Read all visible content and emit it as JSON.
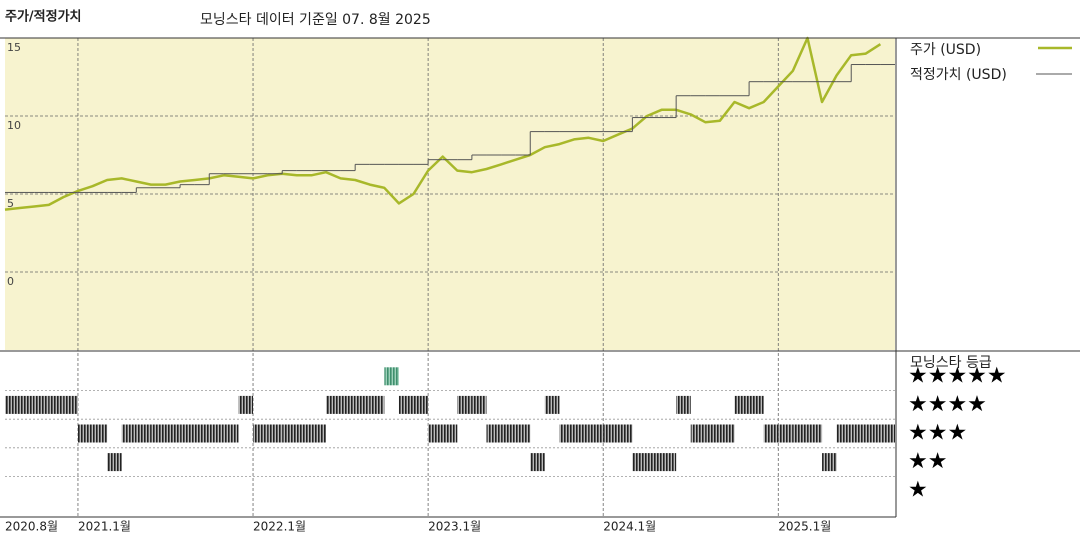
{
  "chart_data": {
    "type": "line",
    "title": "주가/적정가치",
    "subtitle": "모닝스타 데이터 기준일 07. 8월 2025",
    "x": [
      "2020-08",
      "2020-09",
      "2020-10",
      "2020-11",
      "2020-12",
      "2021-01",
      "2021-02",
      "2021-03",
      "2021-04",
      "2021-05",
      "2021-06",
      "2021-07",
      "2021-08",
      "2021-09",
      "2021-10",
      "2021-11",
      "2021-12",
      "2022-01",
      "2022-02",
      "2022-03",
      "2022-04",
      "2022-05",
      "2022-06",
      "2022-07",
      "2022-08",
      "2022-09",
      "2022-10",
      "2022-11",
      "2022-12",
      "2023-01",
      "2023-02",
      "2023-03",
      "2023-04",
      "2023-05",
      "2023-06",
      "2023-07",
      "2023-08",
      "2023-09",
      "2023-10",
      "2023-11",
      "2023-12",
      "2024-01",
      "2024-02",
      "2024-03",
      "2024-04",
      "2024-05",
      "2024-06",
      "2024-07",
      "2024-08",
      "2024-09",
      "2024-10",
      "2024-11",
      "2024-12",
      "2025-01",
      "2025-02",
      "2025-03",
      "2025-04",
      "2025-05",
      "2025-06",
      "2025-07",
      "2025-08"
    ],
    "series": [
      {
        "name": "주가 (USD)",
        "color": "#a8b82a",
        "width": 2.5,
        "values": [
          4.0,
          4.1,
          4.2,
          4.3,
          4.8,
          5.2,
          5.5,
          5.9,
          6.0,
          5.8,
          5.6,
          5.6,
          5.8,
          5.9,
          6.0,
          6.2,
          6.1,
          6.0,
          6.2,
          6.3,
          6.2,
          6.2,
          6.4,
          6.0,
          5.9,
          5.6,
          5.4,
          4.4,
          5.0,
          6.5,
          7.4,
          6.5,
          6.4,
          6.6,
          6.9,
          7.2,
          7.5,
          8.0,
          8.2,
          8.5,
          8.6,
          8.4,
          8.8,
          9.2,
          10.0,
          10.4,
          10.4,
          10.1,
          9.6,
          9.7,
          10.9,
          10.5,
          10.9,
          11.9,
          12.9,
          15.0,
          10.9,
          12.6,
          13.9,
          14.0,
          14.6
        ]
      },
      {
        "name": "적정가치 (USD)",
        "color": "#555555",
        "width": 1,
        "step": true,
        "values": [
          5.1,
          5.1,
          5.1,
          5.1,
          5.1,
          5.1,
          5.1,
          5.1,
          5.1,
          5.4,
          5.4,
          5.4,
          5.6,
          5.6,
          6.3,
          6.3,
          6.3,
          6.3,
          6.3,
          6.5,
          6.5,
          6.5,
          6.5,
          6.5,
          6.9,
          6.9,
          6.9,
          6.9,
          6.9,
          7.2,
          7.2,
          7.2,
          7.5,
          7.5,
          7.5,
          7.5,
          9.0,
          9.0,
          9.0,
          9.0,
          9.0,
          9.0,
          9.0,
          9.9,
          9.9,
          9.9,
          11.3,
          11.3,
          11.3,
          11.3,
          11.3,
          12.2,
          12.2,
          12.2,
          12.2,
          12.2,
          12.2,
          12.2,
          13.3,
          13.3,
          13.3
        ]
      }
    ],
    "xlim": [
      "2020-08",
      "2025-09"
    ],
    "xticks": [
      {
        "value": "2020-08",
        "label": "2020.8월"
      },
      {
        "value": "2021-01",
        "label": "2021.1월"
      },
      {
        "value": "2022-01",
        "label": "2022.1월"
      },
      {
        "value": "2023-01",
        "label": "2023.1월"
      },
      {
        "value": "2024-01",
        "label": "2024.1월"
      },
      {
        "value": "2025-01",
        "label": "2025.1월"
      }
    ],
    "ylim": [
      -5,
      15
    ],
    "yticks": [
      0,
      5,
      10,
      15
    ],
    "grid": true,
    "background": "#f7f3cf",
    "legend": "right",
    "rating": {
      "title": "모닝스타 등급",
      "ylim": [
        0.5,
        5.5
      ],
      "ticks": [
        {
          "value": 5,
          "label": "★★★★★"
        },
        {
          "value": 4,
          "label": "★★★★"
        },
        {
          "value": 3,
          "label": "★★★"
        },
        {
          "value": 2,
          "label": "★★"
        },
        {
          "value": 1,
          "label": "★"
        }
      ],
      "color": "#222222",
      "top_color": "#3f8f6e",
      "values": [
        4,
        4,
        4,
        4,
        4,
        3,
        3,
        2,
        3,
        3,
        3,
        3,
        3,
        3,
        3,
        3,
        4,
        3,
        3,
        3,
        3,
        3,
        4,
        4,
        4,
        4,
        5,
        4,
        4,
        3,
        3,
        4,
        4,
        3,
        3,
        3,
        2,
        4,
        3,
        3,
        3,
        3,
        3,
        2,
        2,
        2,
        4,
        3,
        3,
        3,
        4,
        4,
        3,
        3,
        3,
        3,
        2,
        3,
        3,
        3,
        3
      ]
    }
  }
}
